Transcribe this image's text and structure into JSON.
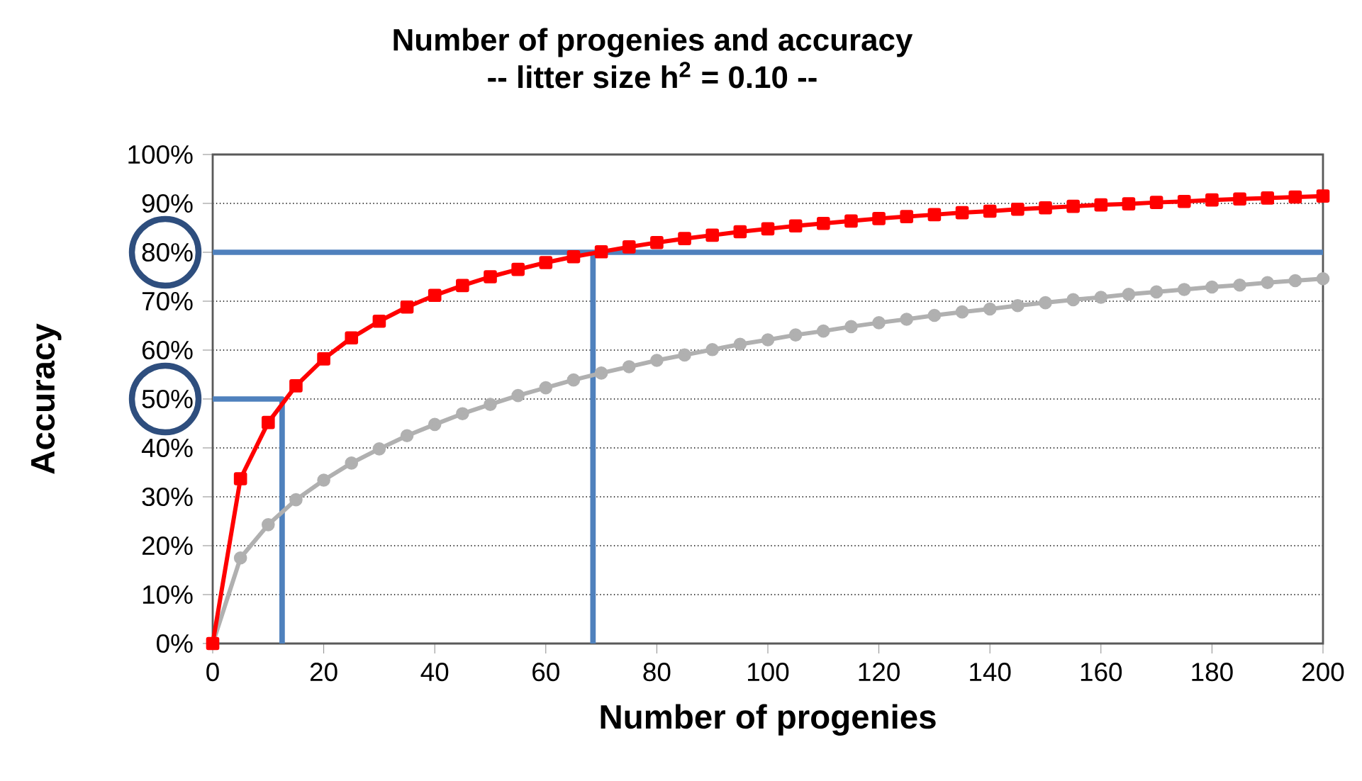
{
  "chart_data": {
    "type": "line",
    "title": "Number of progenies and accuracy",
    "subtitle": "-- litter size h$^{2}$ = 0.10 --",
    "xlabel": "Number of progenies",
    "ylabel": "Accuracy",
    "x": [
      0,
      5,
      10,
      15,
      20,
      25,
      30,
      35,
      40,
      45,
      50,
      55,
      60,
      65,
      70,
      75,
      80,
      85,
      90,
      95,
      100,
      105,
      110,
      115,
      120,
      125,
      130,
      135,
      140,
      145,
      150,
      155,
      160,
      165,
      170,
      175,
      180,
      185,
      190,
      195,
      200
    ],
    "series": [
      {
        "color": "#ff0000",
        "marker": "square",
        "values": [
          0,
          33.7,
          45.2,
          52.7,
          58.2,
          62.5,
          65.9,
          68.8,
          71.2,
          73.2,
          75.0,
          76.5,
          77.9,
          79.1,
          80.1,
          81.1,
          82.0,
          82.8,
          83.5,
          84.2,
          84.8,
          85.4,
          85.9,
          86.4,
          86.9,
          87.3,
          87.7,
          88.1,
          88.4,
          88.8,
          89.1,
          89.4,
          89.7,
          89.9,
          90.2,
          90.4,
          90.7,
          90.9,
          91.1,
          91.3,
          91.5
        ]
      },
      {
        "color": "#b0b0b0",
        "marker": "circle",
        "values": [
          0,
          17.5,
          24.3,
          29.4,
          33.4,
          36.9,
          39.8,
          42.5,
          44.8,
          47.0,
          48.9,
          50.7,
          52.3,
          53.9,
          55.3,
          56.6,
          57.9,
          59.0,
          60.1,
          61.2,
          62.1,
          63.1,
          63.9,
          64.8,
          65.6,
          66.3,
          67.1,
          67.8,
          68.4,
          69.1,
          69.7,
          70.3,
          70.8,
          71.4,
          71.9,
          72.4,
          72.9,
          73.3,
          73.8,
          74.2,
          74.6
        ]
      },
      {
        "color": "#4f81bd",
        "marker": "none",
        "x": [
          0,
          200
        ],
        "values": [
          80,
          80
        ]
      },
      {
        "color": "#4f81bd",
        "marker": "none",
        "x": [
          68.5,
          68.5
        ],
        "values": [
          80,
          0
        ]
      },
      {
        "color": "#4f81bd",
        "marker": "none",
        "x": [
          0,
          12.5,
          12.5
        ],
        "values": [
          50,
          50,
          0
        ]
      }
    ],
    "xlim": [
      0,
      200
    ],
    "ylim": [
      0,
      100
    ],
    "xticks": [
      0,
      20,
      40,
      60,
      80,
      100,
      120,
      140,
      160,
      180,
      200
    ],
    "yticks": [
      {
        "value": 0,
        "label": "0%"
      },
      {
        "value": 10,
        "label": "10%"
      },
      {
        "value": 20,
        "label": "20%"
      },
      {
        "value": 30,
        "label": "30%"
      },
      {
        "value": 40,
        "label": "40%"
      },
      {
        "value": 50,
        "label": "50%"
      },
      {
        "value": 60,
        "label": "60%"
      },
      {
        "value": 70,
        "label": "70%"
      },
      {
        "value": 80,
        "label": "80%"
      },
      {
        "value": 90,
        "label": "90%"
      },
      {
        "value": 100,
        "label": "100%"
      }
    ],
    "grid": "y"
  }
}
